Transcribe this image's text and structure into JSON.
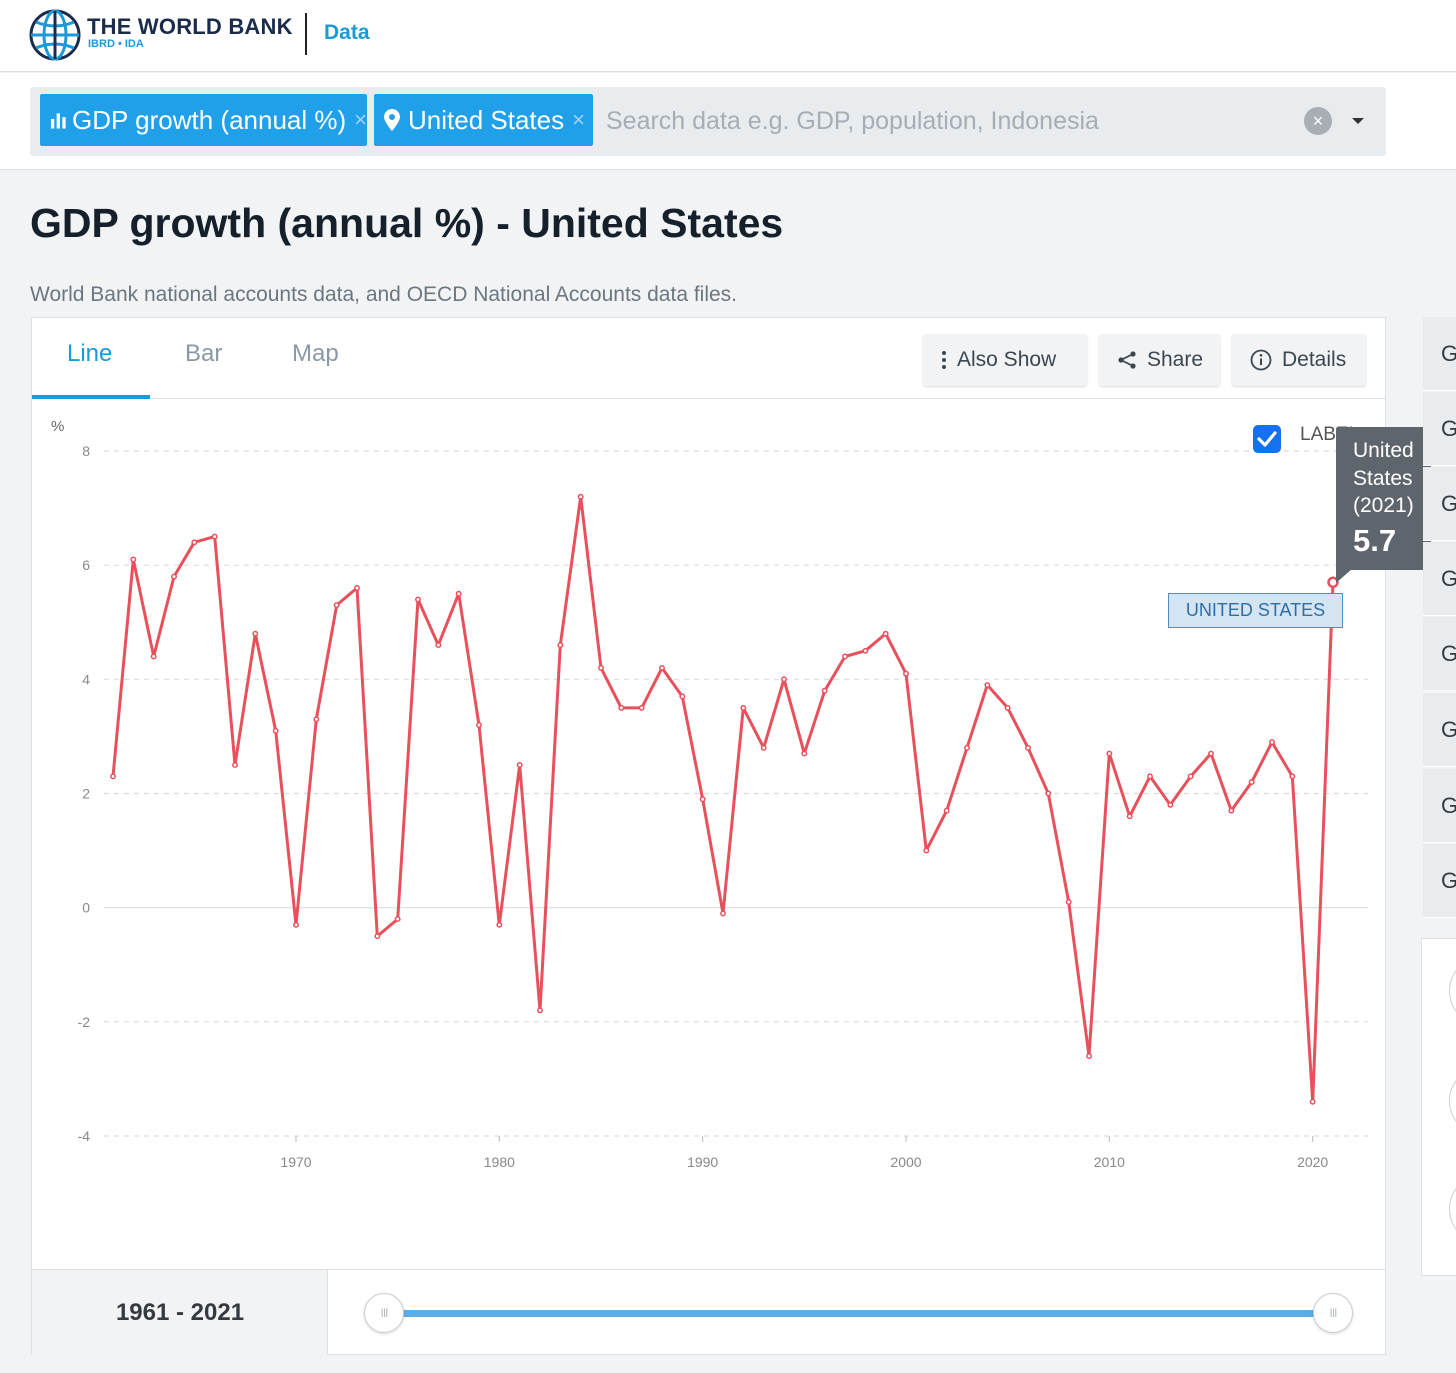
{
  "header": {
    "logo_title": "THE WORLD BANK",
    "logo_subtitle": "IBRD • IDA",
    "section": "Data"
  },
  "search": {
    "chips": [
      {
        "label": "GDP growth (annual %)",
        "icon": "bar-chart-icon"
      },
      {
        "label": "United States",
        "icon": "map-pin-icon"
      }
    ],
    "chip_remove_glyph": "×",
    "placeholder": "Search data e.g. GDP, population, Indonesia",
    "clear_glyph": "×"
  },
  "page": {
    "title": "GDP growth (annual %) - United States",
    "source": "World Bank national accounts data, and OECD National Accounts data files."
  },
  "tabs": [
    {
      "label": "Line",
      "active": true
    },
    {
      "label": "Bar",
      "active": false
    },
    {
      "label": "Map",
      "active": false
    }
  ],
  "tools": {
    "also_show": "Also Show",
    "share": "Share",
    "details": "Details"
  },
  "chart_controls": {
    "label_toggle": "LABEL",
    "label_checked": true
  },
  "tooltip": {
    "country_line1": "United",
    "country_line2": "States",
    "year": "(2021)",
    "value": "5.7"
  },
  "series_tag": "UNITED STATES",
  "range": {
    "text": "1961 - 2021",
    "knob_glyph": "III"
  },
  "side_panel": {
    "item_letter": "G"
  },
  "colors": {
    "accent": "#1a9ad6",
    "chip": "#21a0ea",
    "series": "#e8505b",
    "tooltip_bg": "#5f656c"
  },
  "chart_data": {
    "type": "line",
    "title": "",
    "xlabel": "",
    "ylabel": "%",
    "ylim": [
      -4,
      8
    ],
    "xlim": [
      1961,
      2021
    ],
    "yticks": [
      8,
      6,
      4,
      2,
      0,
      -2,
      -4
    ],
    "xticks": [
      1970,
      1980,
      1990,
      2000,
      2010,
      2020
    ],
    "grid": "horizontal dashed",
    "series": [
      {
        "name": "UNITED STATES",
        "x": [
          1961,
          1962,
          1963,
          1964,
          1965,
          1966,
          1967,
          1968,
          1969,
          1970,
          1971,
          1972,
          1973,
          1974,
          1975,
          1976,
          1977,
          1978,
          1979,
          1980,
          1981,
          1982,
          1983,
          1984,
          1985,
          1986,
          1987,
          1988,
          1989,
          1990,
          1991,
          1992,
          1993,
          1994,
          1995,
          1996,
          1997,
          1998,
          1999,
          2000,
          2001,
          2002,
          2003,
          2004,
          2005,
          2006,
          2007,
          2008,
          2009,
          2010,
          2011,
          2012,
          2013,
          2014,
          2015,
          2016,
          2017,
          2018,
          2019,
          2020,
          2021
        ],
        "values": [
          2.3,
          6.1,
          4.4,
          5.8,
          6.4,
          6.5,
          2.5,
          4.8,
          3.1,
          -0.3,
          3.3,
          5.3,
          5.6,
          -0.5,
          -0.2,
          5.4,
          4.6,
          5.5,
          3.2,
          -0.3,
          2.5,
          -1.8,
          4.6,
          7.2,
          4.2,
          3.5,
          3.5,
          4.2,
          3.7,
          1.9,
          -0.1,
          3.5,
          2.8,
          4.0,
          2.7,
          3.8,
          4.4,
          4.5,
          4.8,
          4.1,
          1.0,
          1.7,
          2.8,
          3.9,
          3.5,
          2.8,
          2.0,
          0.1,
          -2.6,
          2.7,
          1.6,
          2.3,
          1.8,
          2.3,
          2.7,
          1.7,
          2.2,
          2.9,
          2.3,
          -3.4,
          5.7
        ]
      }
    ]
  }
}
